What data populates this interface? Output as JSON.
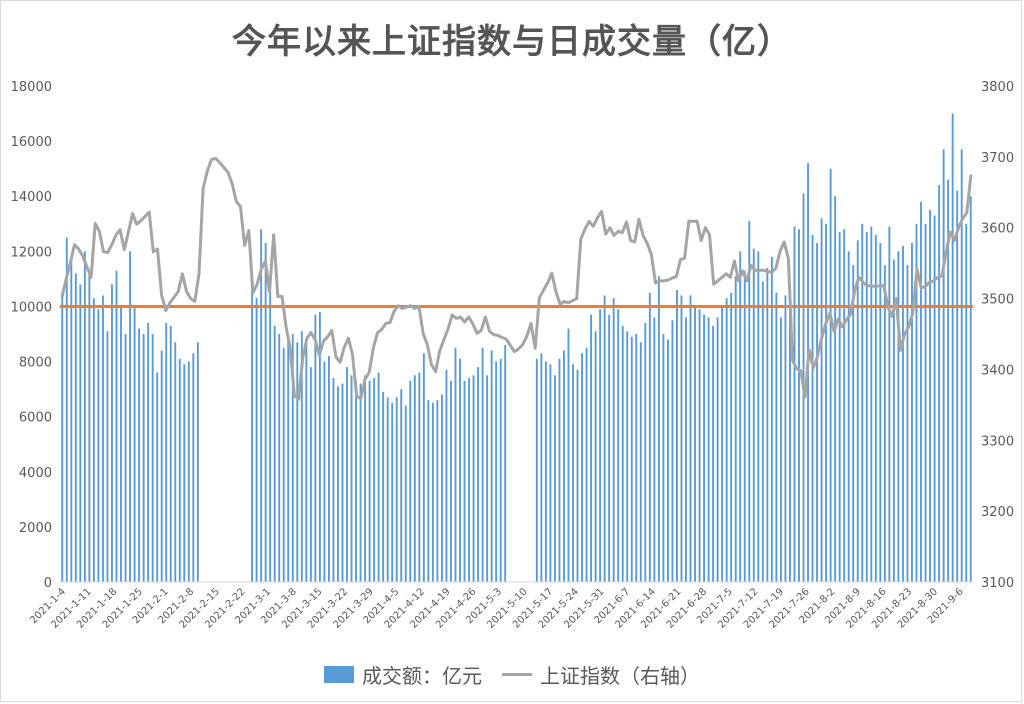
{
  "title": "今年以来上证指数与日成交量（亿）",
  "colors": {
    "bar": "#5b9bd5",
    "line": "#a5a5a5",
    "ref": "#ed7d31",
    "axis": "#d9d9d9"
  },
  "legend": {
    "bar_label": "成交额：亿元",
    "line_label": "上证指数（右轴）"
  },
  "chart_data": {
    "type": "bar+line",
    "title": "今年以来上证指数与日成交量（亿）",
    "legend_position": "bottom",
    "grid": false,
    "y_left": {
      "ylim": [
        0,
        18000
      ],
      "ticks": [
        "0",
        "2000",
        "4000",
        "6000",
        "8000",
        "10000",
        "12000",
        "14000",
        "16000",
        "18000"
      ]
    },
    "y_right": {
      "ylim": [
        3100,
        3800
      ],
      "ticks": [
        "3100",
        "3200",
        "3300",
        "3400",
        "3500",
        "3600",
        "3700",
        "3800"
      ]
    },
    "x_ticks": [
      "2021-1-4",
      "2021-1-11",
      "2021-1-18",
      "2021-1-25",
      "2021-2-1",
      "2021-2-8",
      "2021-2-15",
      "2021-2-22",
      "2021-3-1",
      "2021-3-8",
      "2021-3-15",
      "2021-3-22",
      "2021-3-29",
      "2021-4-5",
      "2021-4-12",
      "2021-4-19",
      "2021-4-26",
      "2021-5-3",
      "2021-5-10",
      "2021-5-17",
      "2021-5-24",
      "2021-5-31",
      "2021-6-7",
      "2021-6-14",
      "2021-6-21",
      "2021-6-28",
      "2021-7-5",
      "2021-7-12",
      "2021-7-19",
      "2021-7-26",
      "2021-8-2",
      "2021-8-9",
      "2021-8-16",
      "2021-8-23",
      "2021-8-30",
      "2021-9-6"
    ],
    "reference_line": {
      "axis": "left",
      "value": 10000
    },
    "series": [
      {
        "name": "成交额：亿元",
        "type": "bar",
        "axis": "left",
        "values": [
          10500,
          12500,
          11700,
          11200,
          10800,
          12000,
          11200,
          10300,
          9900,
          10400,
          9100,
          10800,
          11300,
          10000,
          9000,
          12000,
          10000,
          9200,
          9000,
          9400,
          9000,
          7600,
          8400,
          9400,
          9300,
          8700,
          8100,
          7900,
          8000,
          8300,
          8700,
          0,
          0,
          0,
          0,
          0,
          0,
          0,
          0,
          0,
          0,
          0,
          10700,
          10300,
          12800,
          12300,
          10600,
          9300,
          9000,
          8500,
          8800,
          9000,
          8700,
          9100,
          8700,
          7800,
          9700,
          9800,
          8000,
          8200,
          7400,
          7100,
          7200,
          7800,
          7500,
          7300,
          7200,
          7500,
          7300,
          7400,
          7600,
          6900,
          6700,
          6500,
          6700,
          7000,
          6400,
          7300,
          7500,
          7600,
          8300,
          6600,
          6500,
          6600,
          6800,
          7700,
          7300,
          8500,
          8100,
          7300,
          7400,
          7500,
          7800,
          8500,
          7500,
          8400,
          8000,
          8100,
          8600,
          0,
          0,
          0,
          0,
          0,
          0,
          8100,
          8300,
          8000,
          7900,
          7500,
          8100,
          8400,
          9200,
          7900,
          7700,
          8300,
          8500,
          9700,
          9100,
          9900,
          10400,
          9700,
          10300,
          9900,
          9300,
          9100,
          8900,
          9000,
          8700,
          9400,
          10500,
          9600,
          11100,
          9000,
          8800,
          9500,
          10600,
          10400,
          9600,
          10400,
          10000,
          9900,
          9700,
          9600,
          9300,
          9600,
          10000,
          10300,
          10500,
          11100,
          12000,
          11300,
          13100,
          12100,
          12000,
          10900,
          11400,
          11800,
          10500,
          9600,
          10400,
          10000,
          12900,
          12800,
          14100,
          15200,
          12600,
          12300,
          13200,
          13000,
          15000,
          14000,
          12700,
          12800,
          12000,
          11500,
          12400,
          13000,
          12700,
          12900,
          12600,
          12300,
          11500,
          12900,
          11700,
          12000,
          12200,
          11500,
          12300,
          13000,
          13800,
          13000,
          13500,
          13300,
          14400,
          15700,
          14600,
          17000,
          14200,
          15700,
          13000,
          14000
        ]
      },
      {
        "name": "上证指数（右轴）",
        "type": "line",
        "axis": "right",
        "values": [
          3502,
          3528,
          3550,
          3576,
          3570,
          3560,
          3545,
          3530,
          3606,
          3595,
          3566,
          3565,
          3576,
          3590,
          3597,
          3569,
          3594,
          3620,
          3605,
          3610,
          3616,
          3622,
          3566,
          3570,
          3505,
          3483,
          3494,
          3502,
          3510,
          3535,
          3510,
          3500,
          3496,
          3535,
          3655,
          3680,
          3696,
          3698,
          3692,
          3685,
          3678,
          3662,
          3637,
          3630,
          3575,
          3596,
          3508,
          3520,
          3541,
          3553,
          3510,
          3590,
          3503,
          3503,
          3460,
          3429,
          3363,
          3358,
          3416,
          3444,
          3452,
          3442,
          3420,
          3440,
          3446,
          3455,
          3418,
          3410,
          3431,
          3444,
          3421,
          3362,
          3359,
          3386,
          3396,
          3430,
          3452,
          3456,
          3465,
          3466,
          3482,
          3490,
          3486,
          3488,
          3490,
          3486,
          3489,
          3451,
          3435,
          3407,
          3397,
          3426,
          3442,
          3457,
          3477,
          3472,
          3474,
          3467,
          3474,
          3464,
          3451,
          3455,
          3474,
          3454,
          3449,
          3448,
          3445,
          3443,
          3434,
          3425,
          3429,
          3435,
          3447,
          3465,
          3430,
          3501,
          3512,
          3522,
          3536,
          3510,
          3492,
          3496,
          3494,
          3497,
          3500,
          3584,
          3598,
          3609,
          3602,
          3614,
          3623,
          3591,
          3600,
          3589,
          3595,
          3593,
          3608,
          3582,
          3580,
          3612,
          3589,
          3578,
          3562,
          3522,
          3525,
          3525,
          3526,
          3529,
          3531,
          3555,
          3557,
          3609,
          3609,
          3609,
          3582,
          3600,
          3590,
          3520,
          3525,
          3530,
          3535,
          3530,
          3553,
          3525,
          3539,
          3525,
          3547,
          3540,
          3540,
          3540,
          3538,
          3537,
          3543,
          3567,
          3580,
          3556,
          3413,
          3401,
          3398,
          3361,
          3428,
          3402,
          3418,
          3444,
          3464,
          3480,
          3454,
          3471,
          3460,
          3470,
          3478,
          3512,
          3530,
          3523,
          3518,
          3518,
          3517,
          3518,
          3518,
          3488,
          3475,
          3500,
          3427,
          3450,
          3460,
          3480,
          3541,
          3515,
          3517,
          3523,
          3525,
          3530,
          3532,
          3565,
          3594,
          3582,
          3600,
          3613,
          3621,
          3675
        ]
      }
    ]
  }
}
